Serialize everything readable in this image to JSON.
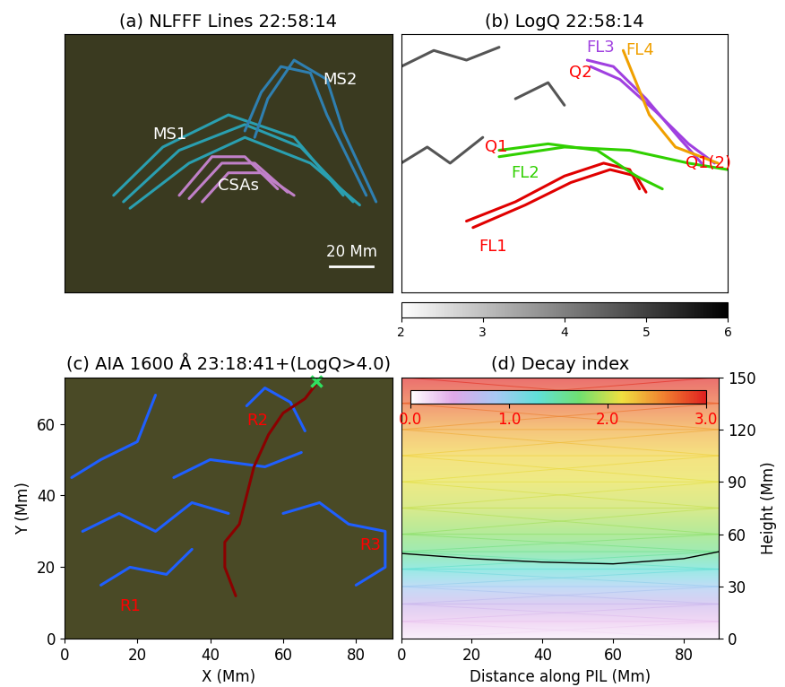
{
  "chart_data": [
    {
      "type": "image",
      "title": "(a) NLFFF Lines 22:58:14",
      "tick_labels": false,
      "xlim": [
        0,
        100
      ],
      "ylim": [
        0,
        80
      ],
      "color": "#3a3a20",
      "lines": [
        {
          "color": "#2a9fb0",
          "x": [
            15,
            30,
            50,
            70,
            85
          ],
          "y": [
            30,
            45,
            55,
            48,
            30
          ]
        },
        {
          "color": "#2a9fb0",
          "x": [
            18,
            35,
            55,
            72,
            88
          ],
          "y": [
            28,
            44,
            52,
            45,
            28
          ]
        },
        {
          "color": "#2a9fb0",
          "x": [
            20,
            38,
            55,
            75,
            90
          ],
          "y": [
            26,
            40,
            48,
            40,
            27
          ]
        },
        {
          "color": "#2f7fb0",
          "x": [
            55,
            60,
            66,
            75,
            80,
            92
          ],
          "y": [
            50,
            62,
            70,
            68,
            55,
            30
          ]
        },
        {
          "color": "#2f7fb0",
          "x": [
            58,
            62,
            70,
            80,
            85,
            95
          ],
          "y": [
            48,
            60,
            72,
            66,
            50,
            28
          ]
        },
        {
          "color": "#c080c8",
          "x": [
            35,
            45,
            55,
            65
          ],
          "y": [
            30,
            42,
            42,
            32
          ]
        },
        {
          "color": "#c080c8",
          "x": [
            38,
            48,
            58,
            68
          ],
          "y": [
            29,
            40,
            40,
            31
          ]
        },
        {
          "color": "#c080c8",
          "x": [
            42,
            50,
            60,
            70
          ],
          "y": [
            28,
            37,
            37,
            30
          ]
        }
      ],
      "annotations": [
        {
          "text": "MS1",
          "x": 32,
          "y": 49,
          "color": "white"
        },
        {
          "text": "MS2",
          "x": 84,
          "y": 66,
          "color": "white"
        },
        {
          "text": "CSAs",
          "x": 53,
          "y": 33,
          "color": "white"
        }
      ],
      "scale_bar": {
        "label": "20 Mm",
        "x": [
          81,
          94
        ],
        "y": 8,
        "color": "white"
      }
    },
    {
      "type": "image",
      "title": "(b) LogQ 22:58:14",
      "tick_labels": false,
      "xlim": [
        0,
        100
      ],
      "ylim": [
        0,
        80
      ],
      "color": "white",
      "lines": [
        {
          "color": "#555555",
          "x": [
            0,
            10,
            20,
            30
          ],
          "y": [
            70,
            75,
            72,
            76
          ]
        },
        {
          "color": "#555555",
          "x": [
            0,
            8,
            15,
            25
          ],
          "y": [
            40,
            45,
            40,
            48
          ]
        },
        {
          "color": "#555555",
          "x": [
            35,
            45,
            50
          ],
          "y": [
            60,
            65,
            58
          ]
        },
        {
          "color": "#e00000",
          "x": [
            20,
            35,
            50,
            62,
            70,
            73
          ],
          "y": [
            22,
            28,
            36,
            40,
            38,
            32
          ]
        },
        {
          "color": "#e00000",
          "x": [
            22,
            38,
            52,
            64,
            72,
            75
          ],
          "y": [
            20,
            27,
            34,
            38,
            36,
            31
          ]
        },
        {
          "color": "#30d000",
          "x": [
            30,
            45,
            60,
            72,
            80
          ],
          "y": [
            44,
            46,
            44,
            36,
            32
          ]
        },
        {
          "color": "#30d000",
          "x": [
            30,
            50,
            70,
            88,
            100
          ],
          "y": [
            42,
            45,
            44,
            40,
            38
          ]
        },
        {
          "color": "#a040e0",
          "x": [
            57,
            65,
            75,
            85,
            92
          ],
          "y": [
            72,
            70,
            60,
            48,
            40
          ]
        },
        {
          "color": "#a040e0",
          "x": [
            58,
            67,
            78,
            88,
            96
          ],
          "y": [
            70,
            66,
            56,
            46,
            40
          ]
        },
        {
          "color": "#f0a000",
          "x": [
            68,
            72,
            76,
            84,
            97
          ],
          "y": [
            75,
            65,
            55,
            45,
            40
          ]
        }
      ],
      "annotations": [
        {
          "text": "Q1",
          "x": 29,
          "y": 45,
          "color": "red"
        },
        {
          "text": "Q2",
          "x": 55,
          "y": 68,
          "color": "red"
        },
        {
          "text": "Q1(2)",
          "x": 94,
          "y": 40,
          "color": "red"
        },
        {
          "text": "FL1",
          "x": 28,
          "y": 14,
          "color": "red"
        },
        {
          "text": "FL2",
          "x": 38,
          "y": 37,
          "color": "#30d000"
        },
        {
          "text": "FL3",
          "x": 61,
          "y": 76,
          "color": "#a040e0"
        },
        {
          "text": "FL4",
          "x": 73,
          "y": 75,
          "color": "#f0a000"
        }
      ],
      "colorbar": {
        "range": [
          2,
          6
        ],
        "ticks": [
          2,
          3,
          4,
          5,
          6
        ]
      }
    },
    {
      "type": "image",
      "title": "(c) AIA 1600 Å 23:18:41+(LogQ>4.0)",
      "xlabel": "X (Mm)",
      "ylabel": "Y (Mm)",
      "color": "#4a4a26",
      "xlim": [
        0,
        90
      ],
      "ylim": [
        0,
        73
      ],
      "xticks": [
        0,
        20,
        40,
        60,
        80
      ],
      "yticks": [
        0,
        20,
        40,
        60
      ],
      "lines": [
        {
          "color": "#1f5fff",
          "x": [
            2,
            10,
            20,
            25
          ],
          "y": [
            45,
            50,
            55,
            68
          ]
        },
        {
          "color": "#1f5fff",
          "x": [
            5,
            15,
            25,
            35,
            45
          ],
          "y": [
            30,
            35,
            30,
            38,
            35
          ]
        },
        {
          "color": "#1f5fff",
          "x": [
            10,
            18,
            28,
            35
          ],
          "y": [
            15,
            20,
            18,
            25
          ]
        },
        {
          "color": "#1f5fff",
          "x": [
            60,
            70,
            78,
            88,
            88,
            80
          ],
          "y": [
            35,
            38,
            32,
            30,
            20,
            15
          ]
        },
        {
          "color": "#1f5fff",
          "x": [
            50,
            55,
            62,
            66
          ],
          "y": [
            65,
            70,
            66,
            58
          ]
        },
        {
          "color": "#1f5fff",
          "x": [
            30,
            40,
            55,
            65
          ],
          "y": [
            45,
            50,
            48,
            52
          ]
        },
        {
          "color": "#8b0000",
          "x": [
            47,
            44,
            44,
            48,
            50,
            52,
            56,
            60,
            66,
            69
          ],
          "y": [
            12,
            20,
            27,
            32,
            40,
            48,
            57,
            63,
            67,
            71
          ]
        }
      ],
      "markers": [
        {
          "x": 69,
          "y": 72,
          "marker": "x",
          "color": "#30e060"
        }
      ],
      "annotations": [
        {
          "text": "R1",
          "x": 18,
          "y": 9,
          "color": "red"
        },
        {
          "text": "R2",
          "x": 53,
          "y": 61,
          "color": "red"
        },
        {
          "text": "R3",
          "x": 84,
          "y": 26,
          "color": "red"
        }
      ]
    },
    {
      "type": "heatmap",
      "title": "(d) Decay index",
      "xlabel": "Distance along PIL (Mm)",
      "ylabel": "Height (Mm)",
      "xlim": [
        0,
        90
      ],
      "ylim": [
        0,
        150
      ],
      "xticks": [
        0,
        20,
        40,
        60,
        80
      ],
      "yticks": [
        0,
        30,
        60,
        90,
        120,
        150
      ],
      "heights": [
        0,
        10,
        20,
        30,
        40,
        50,
        60,
        75,
        90,
        105,
        120,
        135,
        150
      ],
      "decay_index": [
        0.1,
        0.3,
        0.6,
        0.9,
        1.3,
        1.6,
        1.8,
        2.0,
        2.1,
        2.2,
        2.4,
        2.7,
        3.0
      ],
      "contour": {
        "color": "black",
        "x": [
          0,
          20,
          40,
          60,
          80,
          90
        ],
        "y": [
          49,
          46,
          44,
          43,
          46,
          50
        ]
      },
      "colorbar": {
        "range": [
          0,
          3
        ],
        "ticks": [
          {
            "value": 0,
            "label": "0.0"
          },
          {
            "value": 1,
            "label": "1.0"
          },
          {
            "value": 2,
            "label": "2.0"
          },
          {
            "value": 3,
            "label": "3.0"
          }
        ],
        "color": "red"
      }
    }
  ]
}
